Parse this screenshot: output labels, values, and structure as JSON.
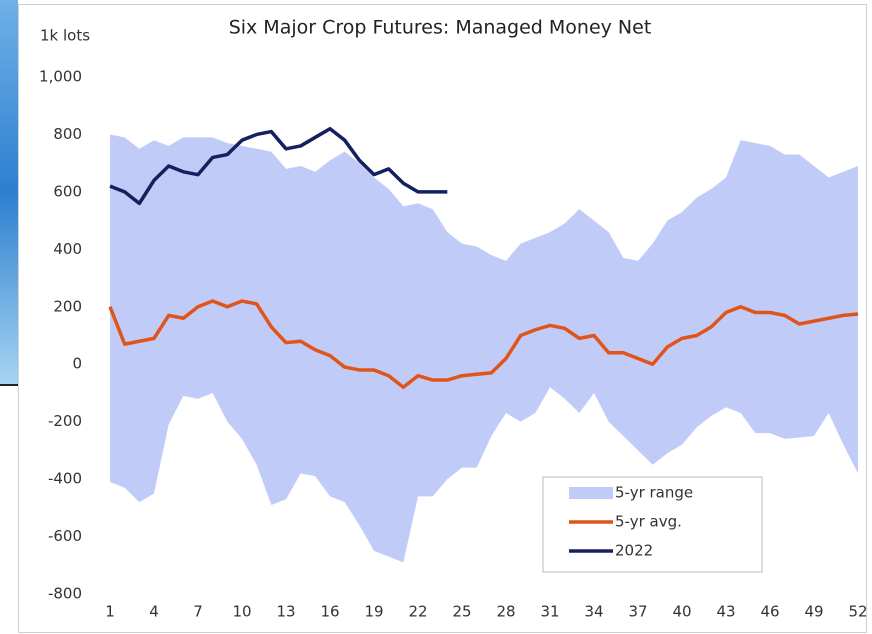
{
  "chart_data": {
    "type": "line",
    "title": "Six Major Crop Futures: Managed Money Net",
    "y_label": "1k lots",
    "x": [
      1,
      2,
      3,
      4,
      5,
      6,
      7,
      8,
      9,
      10,
      11,
      12,
      13,
      14,
      15,
      16,
      17,
      18,
      19,
      20,
      21,
      22,
      23,
      24,
      25,
      26,
      27,
      28,
      29,
      30,
      31,
      32,
      33,
      34,
      35,
      36,
      37,
      38,
      39,
      40,
      41,
      42,
      43,
      44,
      45,
      46,
      47,
      48,
      49,
      50,
      51,
      52
    ],
    "xlim": [
      1,
      52
    ],
    "xticks": [
      1,
      4,
      7,
      10,
      13,
      16,
      19,
      22,
      25,
      28,
      31,
      34,
      37,
      40,
      43,
      46,
      49,
      52
    ],
    "ylim": [
      -800,
      1000
    ],
    "yticks": [
      -800,
      -600,
      -400,
      -200,
      0,
      200,
      400,
      600,
      800,
      {
        "value": 1000,
        "label": "1,000"
      }
    ],
    "series": [
      {
        "name": "5-yr range",
        "color": "#c0cbf8",
        "kind": "band",
        "upper": [
          800,
          790,
          750,
          780,
          760,
          790,
          790,
          790,
          770,
          760,
          750,
          740,
          680,
          690,
          670,
          710,
          740,
          700,
          650,
          610,
          550,
          560,
          540,
          460,
          420,
          410,
          380,
          360,
          420,
          440,
          460,
          490,
          540,
          500,
          460,
          370,
          360,
          420,
          500,
          530,
          580,
          610,
          650,
          780,
          770,
          760,
          730,
          730,
          690,
          650,
          670,
          690
        ],
        "lower": [
          -410,
          -430,
          -480,
          -450,
          -210,
          -110,
          -120,
          -100,
          -200,
          -260,
          -350,
          -490,
          -470,
          -380,
          -390,
          -460,
          -480,
          -560,
          -650,
          -670,
          -690,
          -460,
          -460,
          -400,
          -360,
          -360,
          -250,
          -170,
          -200,
          -170,
          -80,
          -120,
          -170,
          -100,
          -200,
          -250,
          -300,
          -350,
          -310,
          -280,
          -220,
          -180,
          -150,
          -170,
          -240,
          -240,
          -260,
          -255,
          -250,
          -170,
          -280,
          -380
        ]
      },
      {
        "name": "5-yr avg.",
        "color": "#e0541a",
        "values": [
          200,
          70,
          80,
          90,
          170,
          160,
          200,
          220,
          200,
          220,
          210,
          130,
          75,
          80,
          50,
          30,
          -10,
          -20,
          -20,
          -40,
          -80,
          -40,
          -55,
          -55,
          -40,
          -35,
          -30,
          20,
          100,
          120,
          135,
          125,
          90,
          100,
          40,
          40,
          20,
          0,
          60,
          90,
          100,
          130,
          180,
          200,
          180,
          180,
          170,
          140,
          150,
          160,
          170,
          175
        ]
      },
      {
        "name": "2022",
        "color": "#152060",
        "values": [
          620,
          600,
          560,
          640,
          690,
          670,
          660,
          720,
          730,
          780,
          800,
          810,
          750,
          760,
          790,
          820,
          780,
          710,
          660,
          680,
          630,
          600,
          600,
          600,
          null,
          null,
          null,
          null,
          null,
          null,
          null,
          null,
          null,
          null,
          null,
          null,
          null,
          null,
          null,
          null,
          null,
          null,
          null,
          null,
          null,
          null,
          null,
          null,
          null,
          null,
          null,
          null
        ]
      }
    ],
    "legend": "lower-right"
  }
}
